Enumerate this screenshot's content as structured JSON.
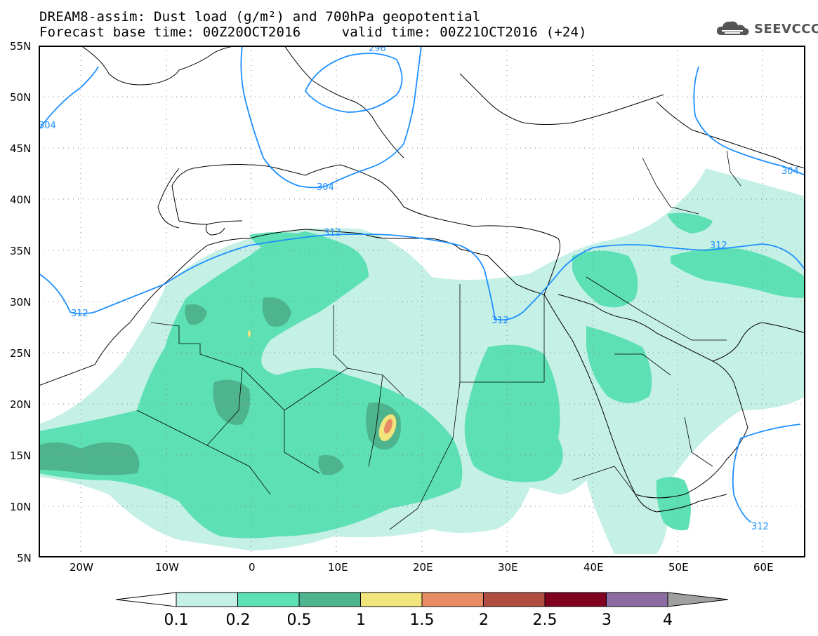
{
  "header": {
    "title_line1": "DREAM8-assim: Dust load (g/m²) and 700hPa geopotential",
    "title_line2": "Forecast base time: 00Z20OCT2016     valid time: 00Z21OCT2016 (+24)"
  },
  "logo": {
    "text": "SEEVCCC",
    "icon": "cloud-icon"
  },
  "map": {
    "lat_labels": [
      "55N",
      "50N",
      "45N",
      "40N",
      "35N",
      "30N",
      "25N",
      "20N",
      "15N",
      "10N",
      "5N"
    ],
    "lon_labels": [
      "20W",
      "10W",
      "0",
      "10E",
      "20E",
      "30E",
      "40E",
      "50E",
      "60E"
    ],
    "contour_labels": [
      "296",
      "304",
      "304",
      "304",
      "312",
      "312",
      "312",
      "312",
      "312"
    ],
    "extent": {
      "lon_min": -25,
      "lon_max": 65,
      "lat_min": 5,
      "lat_max": 55
    }
  },
  "legend": {
    "labels": [
      "0.1",
      "0.2",
      "0.5",
      "1",
      "1.5",
      "2",
      "2.5",
      "3",
      "4"
    ],
    "colors": [
      "#ffffff",
      "#c4f0e6",
      "#5de0b4",
      "#4db48e",
      "#f2e47c",
      "#e88c66",
      "#b04c40",
      "#800020",
      "#8c6ca2",
      "#a0a0a0"
    ]
  }
}
